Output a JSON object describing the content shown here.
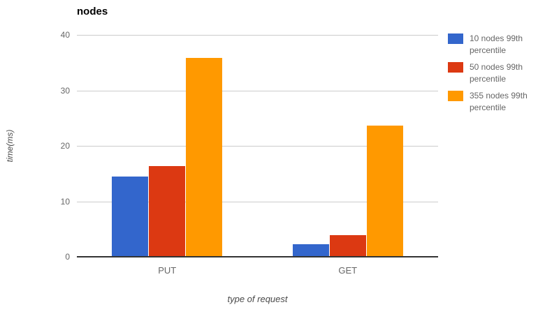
{
  "chart_data": {
    "type": "bar",
    "title": "nodes",
    "xlabel": "type of request",
    "ylabel": "time(ms)",
    "categories": [
      "PUT",
      "GET"
    ],
    "series": [
      {
        "name": "10 nodes 99th percentile",
        "color": "#3366CC",
        "values": [
          14.5,
          2.3
        ]
      },
      {
        "name": "50 nodes 99th percentile",
        "color": "#DC3912",
        "values": [
          16.4,
          3.9
        ]
      },
      {
        "name": "355 nodes 99th percentile",
        "color": "#FF9900",
        "values": [
          35.9,
          23.7
        ]
      }
    ],
    "ylim": [
      0,
      40
    ],
    "yticks": [
      0,
      10,
      20,
      30,
      40
    ],
    "grid": true,
    "legend_position": "right",
    "colors": {
      "grid": "#cccccc",
      "baseline": "#333333",
      "tick_text": "#666666",
      "axis_title_text": "#4a4a4a",
      "title_text": "#000000",
      "background": "#ffffff"
    }
  }
}
